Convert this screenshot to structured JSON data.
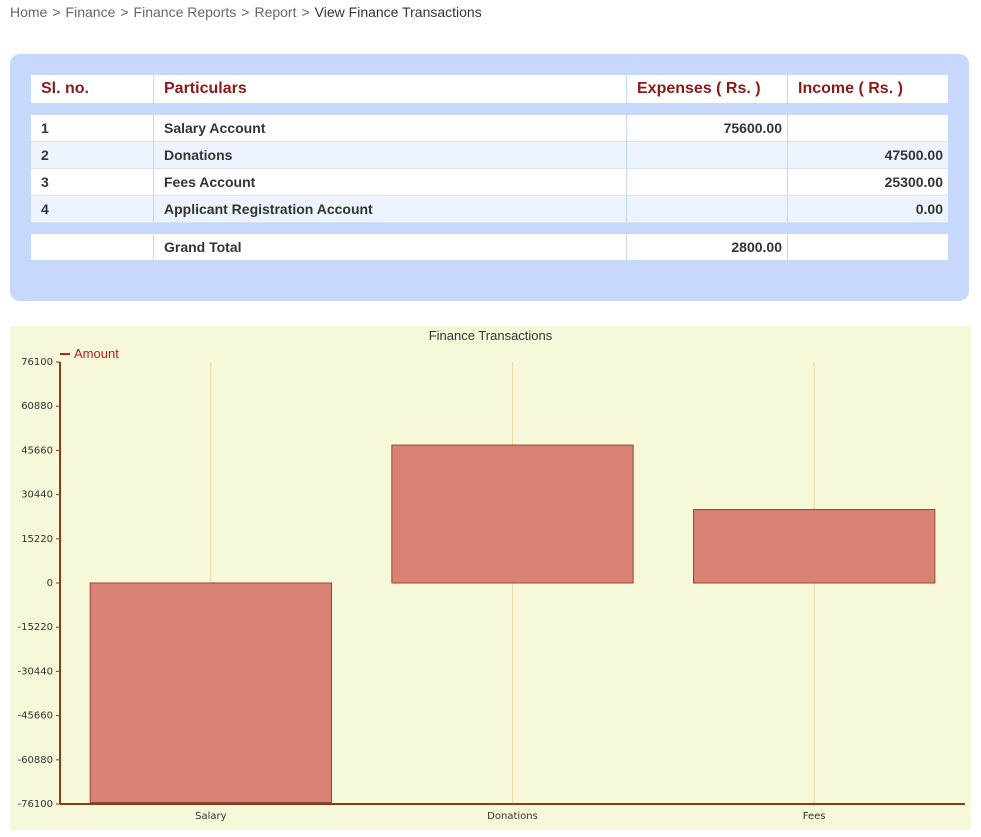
{
  "breadcrumb": {
    "items": [
      "Home",
      "Finance",
      "Finance Reports",
      "Report"
    ],
    "current": "View Finance Transactions",
    "separator": ">"
  },
  "table": {
    "headers": {
      "sl_no": "Sl. no.",
      "particulars": "Particulars",
      "expenses": "Expenses ( Rs. )",
      "income": "Income ( Rs. )"
    },
    "rows": [
      {
        "sl_no": "1",
        "particulars": "Salary Account",
        "expenses": "75600.00",
        "income": ""
      },
      {
        "sl_no": "2",
        "particulars": "Donations",
        "expenses": "",
        "income": "47500.00"
      },
      {
        "sl_no": "3",
        "particulars": "Fees Account",
        "expenses": "",
        "income": "25300.00"
      },
      {
        "sl_no": "4",
        "particulars": "Applicant Registration Account",
        "expenses": "",
        "income": "0.00"
      }
    ],
    "total": {
      "label": "Grand Total",
      "expenses": "2800.00",
      "income": ""
    }
  },
  "chart_data": {
    "type": "bar",
    "title": "Finance Transactions",
    "categories": [
      "Salary",
      "Donations",
      "Fees"
    ],
    "series": [
      {
        "name": "Amount",
        "values": [
          -75600,
          47500,
          25300
        ],
        "color": "#d98273"
      }
    ],
    "ylim": [
      -76100,
      76100
    ],
    "yticks": [
      76100,
      60880,
      45660,
      30440,
      15220,
      0,
      -15220,
      -30440,
      -45660,
      -60880,
      -76100
    ],
    "legend_position": "top-left",
    "grid": "vertical",
    "colors": {
      "background": "#f7f7d9",
      "axis": "#8b3a1a",
      "grid": "#f0d9a8",
      "bar_stroke": "#8b4a3a"
    }
  }
}
